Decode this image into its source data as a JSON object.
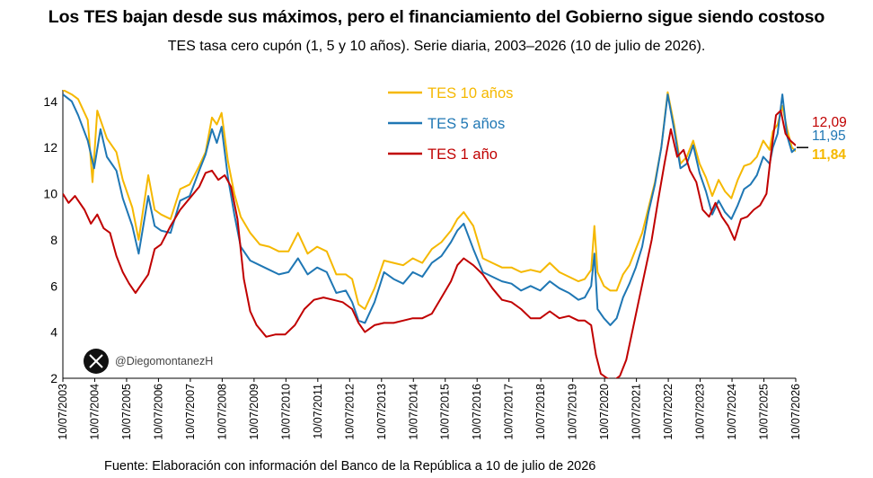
{
  "title": "Los TES bajan desde sus máximos, pero el financiamiento del Gobierno sigue siendo costoso",
  "subtitle": "TES tasa cero cupón (1, 5 y 10 años). Serie diaria, 2003–2026 (10 de julio de 2026).",
  "source": "Fuente: Elaboración con información del Banco de la República a 10 de julio de 2026",
  "watermark": {
    "icon": "x-logo-icon",
    "handle": "@DiegomontanezH"
  },
  "colors": {
    "tes10": "#f5b800",
    "tes5": "#1f77b4",
    "tes1": "#c00000"
  },
  "chart_data": {
    "type": "line",
    "ylim": [
      2,
      14.5
    ],
    "yticks": [
      2,
      4,
      6,
      8,
      10,
      12,
      14
    ],
    "xlim": [
      2003.52,
      2026.52
    ],
    "x_tick_labels": [
      "10/07/2003",
      "10/07/2004",
      "10/07/2005",
      "10/07/2006",
      "10/07/2007",
      "10/07/2008",
      "10/07/2009",
      "10/07/2010",
      "10/07/2011",
      "10/07/2012",
      "10/07/2013",
      "10/07/2014",
      "10/07/2015",
      "10/07/2016",
      "10/07/2017",
      "10/07/2018",
      "10/07/2019",
      "10/07/2020",
      "10/07/2021",
      "10/07/2022",
      "10/07/2023",
      "10/07/2024",
      "10/07/2025",
      "10/07/2026"
    ],
    "grid": false,
    "legend_position": "top-center",
    "series": [
      {
        "name": "TES 10 años",
        "color": "#f5b800",
        "end_label": "11,84",
        "x": [
          2003.52,
          2003.8,
          2004.0,
          2004.3,
          2004.45,
          2004.6,
          2004.9,
          2005.2,
          2005.4,
          2005.7,
          2005.9,
          2006.2,
          2006.4,
          2006.6,
          2006.9,
          2007.2,
          2007.5,
          2007.8,
          2008.0,
          2008.2,
          2008.35,
          2008.5,
          2008.7,
          2008.9,
          2009.1,
          2009.4,
          2009.7,
          2010.0,
          2010.3,
          2010.6,
          2010.9,
          2011.2,
          2011.5,
          2011.8,
          2012.1,
          2012.4,
          2012.6,
          2012.8,
          2013.0,
          2013.3,
          2013.6,
          2013.9,
          2014.2,
          2014.5,
          2014.8,
          2015.1,
          2015.4,
          2015.7,
          2015.9,
          2016.1,
          2016.4,
          2016.7,
          2017.0,
          2017.3,
          2017.6,
          2017.9,
          2018.2,
          2018.5,
          2018.8,
          2019.1,
          2019.4,
          2019.7,
          2019.9,
          2020.1,
          2020.2,
          2020.3,
          2020.5,
          2020.7,
          2020.9,
          2021.1,
          2021.3,
          2021.5,
          2021.7,
          2021.9,
          2022.1,
          2022.3,
          2022.5,
          2022.7,
          2022.9,
          2023.1,
          2023.3,
          2023.5,
          2023.7,
          2023.9,
          2024.1,
          2024.3,
          2024.5,
          2024.7,
          2024.9,
          2025.1,
          2025.3,
          2025.5,
          2025.7,
          2025.8,
          2025.95,
          2026.1,
          2026.25,
          2026.4,
          2026.52
        ],
        "y": [
          14.5,
          14.3,
          14.1,
          13.2,
          10.5,
          13.6,
          12.4,
          11.8,
          10.6,
          9.4,
          8.0,
          10.8,
          9.3,
          9.1,
          8.9,
          10.2,
          10.4,
          11.2,
          11.8,
          13.3,
          13.0,
          13.5,
          11.4,
          10.0,
          9.0,
          8.3,
          7.8,
          7.7,
          7.5,
          7.5,
          8.3,
          7.4,
          7.7,
          7.5,
          6.5,
          6.5,
          6.3,
          5.2,
          5.0,
          5.9,
          7.1,
          7.0,
          6.9,
          7.2,
          7.0,
          7.6,
          7.9,
          8.4,
          8.9,
          9.2,
          8.6,
          7.2,
          7.0,
          6.8,
          6.8,
          6.6,
          6.7,
          6.6,
          7.0,
          6.6,
          6.4,
          6.2,
          6.3,
          6.7,
          8.6,
          6.6,
          6.0,
          5.8,
          5.8,
          6.5,
          6.9,
          7.6,
          8.3,
          9.4,
          10.5,
          12.0,
          14.4,
          13.0,
          11.3,
          11.6,
          12.3,
          11.3,
          10.7,
          9.9,
          10.6,
          10.1,
          9.8,
          10.6,
          11.2,
          11.3,
          11.6,
          12.3,
          11.9,
          12.7,
          13.0,
          13.8,
          12.8,
          12.0,
          11.84
        ]
      },
      {
        "name": "TES 5 años",
        "color": "#1f77b4",
        "end_label": "11,95",
        "x": [
          2003.52,
          2003.8,
          2004.0,
          2004.3,
          2004.5,
          2004.7,
          2004.9,
          2005.2,
          2005.4,
          2005.7,
          2005.9,
          2006.2,
          2006.4,
          2006.6,
          2006.9,
          2007.2,
          2007.5,
          2007.8,
          2008.0,
          2008.2,
          2008.35,
          2008.5,
          2008.7,
          2008.9,
          2009.1,
          2009.4,
          2009.7,
          2010.0,
          2010.3,
          2010.6,
          2010.9,
          2011.2,
          2011.5,
          2011.8,
          2012.1,
          2012.4,
          2012.6,
          2012.8,
          2013.0,
          2013.3,
          2013.6,
          2013.9,
          2014.2,
          2014.5,
          2014.8,
          2015.1,
          2015.4,
          2015.7,
          2015.9,
          2016.1,
          2016.4,
          2016.7,
          2017.0,
          2017.3,
          2017.6,
          2017.9,
          2018.2,
          2018.5,
          2018.8,
          2019.1,
          2019.4,
          2019.7,
          2019.9,
          2020.1,
          2020.2,
          2020.3,
          2020.5,
          2020.7,
          2020.9,
          2021.1,
          2021.3,
          2021.5,
          2021.7,
          2021.9,
          2022.1,
          2022.3,
          2022.5,
          2022.7,
          2022.9,
          2023.1,
          2023.3,
          2023.5,
          2023.7,
          2023.9,
          2024.1,
          2024.3,
          2024.5,
          2024.7,
          2024.9,
          2025.1,
          2025.3,
          2025.5,
          2025.7,
          2025.8,
          2025.95,
          2026.1,
          2026.25,
          2026.4,
          2026.52
        ],
        "y": [
          14.3,
          14.0,
          13.4,
          12.3,
          11.1,
          12.8,
          11.6,
          11.0,
          9.8,
          8.6,
          7.4,
          9.9,
          8.6,
          8.4,
          8.3,
          9.7,
          9.9,
          11.0,
          11.7,
          12.8,
          12.2,
          12.9,
          10.7,
          9.1,
          7.7,
          7.1,
          6.9,
          6.7,
          6.5,
          6.6,
          7.2,
          6.5,
          6.8,
          6.6,
          5.7,
          5.8,
          5.3,
          4.5,
          4.4,
          5.3,
          6.6,
          6.3,
          6.1,
          6.6,
          6.4,
          7.0,
          7.3,
          7.9,
          8.4,
          8.7,
          7.6,
          6.6,
          6.4,
          6.2,
          6.1,
          5.8,
          6.0,
          5.8,
          6.2,
          5.9,
          5.7,
          5.4,
          5.5,
          6.0,
          7.4,
          5.0,
          4.6,
          4.3,
          4.6,
          5.5,
          6.1,
          6.8,
          7.7,
          9.2,
          10.4,
          12.0,
          14.3,
          12.8,
          11.1,
          11.3,
          12.1,
          10.9,
          10.1,
          9.1,
          9.7,
          9.2,
          8.9,
          9.5,
          10.2,
          10.4,
          10.8,
          11.6,
          11.3,
          12.0,
          12.6,
          14.3,
          12.5,
          11.8,
          11.95
        ]
      },
      {
        "name": "TES 1 año",
        "color": "#c00000",
        "end_label": "12,09",
        "x": [
          2003.52,
          2003.7,
          2003.9,
          2004.2,
          2004.4,
          2004.6,
          2004.8,
          2005.0,
          2005.2,
          2005.4,
          2005.6,
          2005.8,
          2006.0,
          2006.2,
          2006.4,
          2006.6,
          2006.9,
          2007.2,
          2007.5,
          2007.8,
          2008.0,
          2008.2,
          2008.4,
          2008.6,
          2008.8,
          2009.0,
          2009.2,
          2009.4,
          2009.6,
          2009.9,
          2010.2,
          2010.5,
          2010.8,
          2011.1,
          2011.4,
          2011.7,
          2012.0,
          2012.3,
          2012.6,
          2012.8,
          2013.0,
          2013.3,
          2013.6,
          2013.9,
          2014.2,
          2014.5,
          2014.8,
          2015.1,
          2015.4,
          2015.7,
          2015.9,
          2016.1,
          2016.4,
          2016.7,
          2017.0,
          2017.3,
          2017.6,
          2017.9,
          2018.2,
          2018.5,
          2018.8,
          2019.1,
          2019.4,
          2019.7,
          2019.9,
          2020.1,
          2020.25,
          2020.4,
          2020.6,
          2020.8,
          2021.0,
          2021.2,
          2021.4,
          2021.6,
          2021.8,
          2022.0,
          2022.2,
          2022.4,
          2022.6,
          2022.8,
          2023.0,
          2023.2,
          2023.4,
          2023.6,
          2023.8,
          2024.0,
          2024.2,
          2024.4,
          2024.6,
          2024.8,
          2025.0,
          2025.2,
          2025.4,
          2025.6,
          2025.75,
          2025.9,
          2026.05,
          2026.2,
          2026.35,
          2026.52
        ],
        "y": [
          10.0,
          9.6,
          9.9,
          9.3,
          8.7,
          9.1,
          8.5,
          8.3,
          7.3,
          6.6,
          6.1,
          5.7,
          6.1,
          6.5,
          7.6,
          7.8,
          8.6,
          9.3,
          9.8,
          10.3,
          10.9,
          11.0,
          10.6,
          10.8,
          10.3,
          8.9,
          6.3,
          4.9,
          4.3,
          3.8,
          3.9,
          3.9,
          4.3,
          5.0,
          5.4,
          5.5,
          5.4,
          5.3,
          5.0,
          4.4,
          4.0,
          4.3,
          4.4,
          4.4,
          4.5,
          4.6,
          4.6,
          4.8,
          5.5,
          6.2,
          6.9,
          7.2,
          6.9,
          6.5,
          5.9,
          5.4,
          5.3,
          5.0,
          4.6,
          4.6,
          4.9,
          4.6,
          4.7,
          4.5,
          4.5,
          4.3,
          3.0,
          2.2,
          2.0,
          1.9,
          2.1,
          2.8,
          4.1,
          5.4,
          6.7,
          8.0,
          9.7,
          11.3,
          12.8,
          11.6,
          11.9,
          11.0,
          10.5,
          9.3,
          9.0,
          9.6,
          9.0,
          8.6,
          8.0,
          8.9,
          9.0,
          9.3,
          9.5,
          10.0,
          11.8,
          13.4,
          13.6,
          12.6,
          12.3,
          12.09
        ]
      }
    ]
  }
}
